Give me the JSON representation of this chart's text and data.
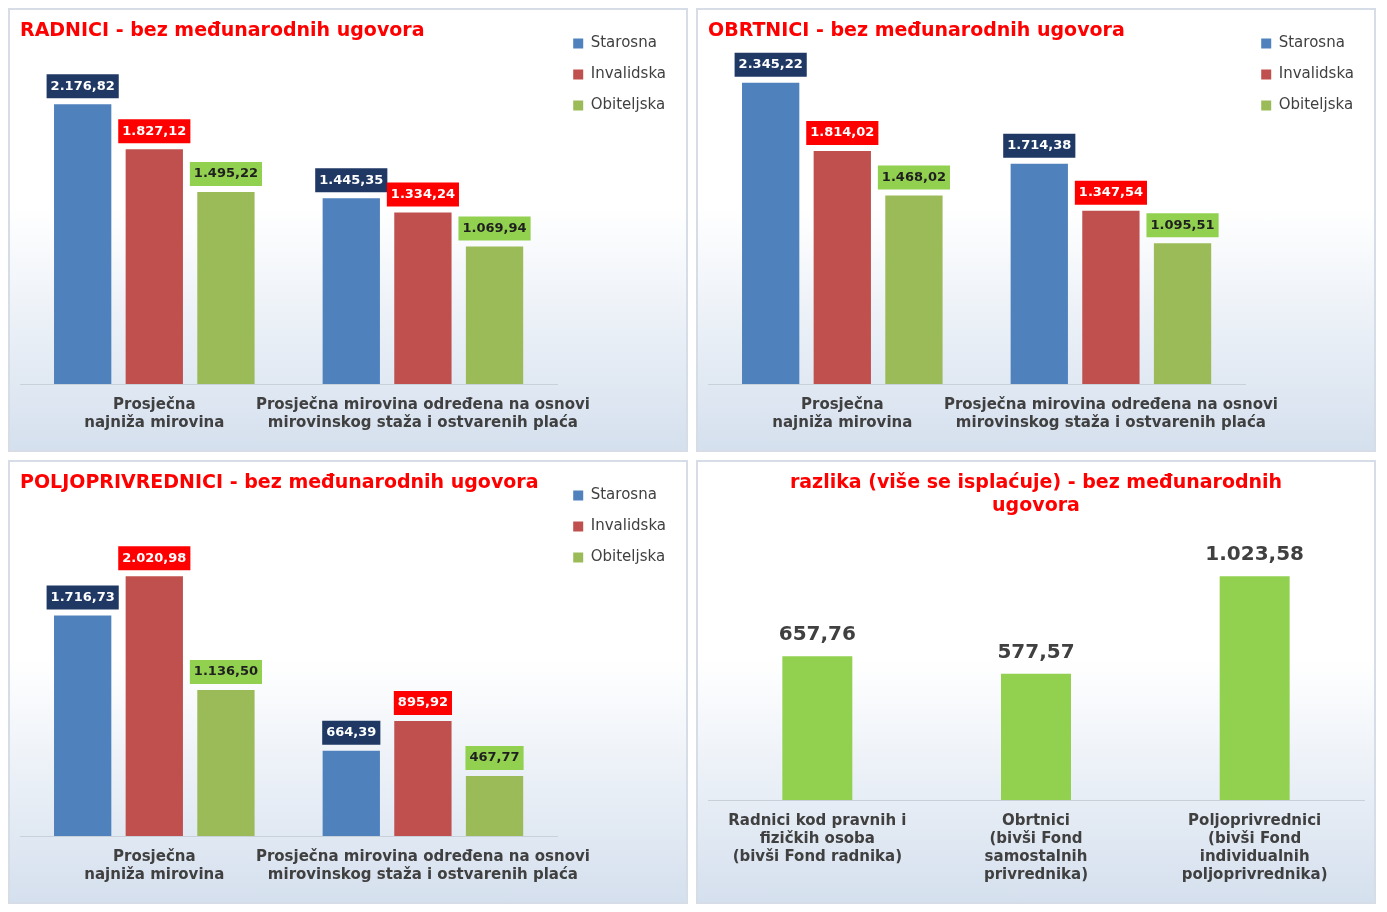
{
  "chart_data": [
    {
      "type": "bar",
      "title": "RADNICI - bez međunarodnih ugovora",
      "categories": [
        "Prosječna\nnajniža mirovina",
        "Prosječna mirovina određena na osnovi\nmirovinskog staža i ostvarenih plaća"
      ],
      "legend": "top right",
      "grid": false,
      "series": [
        {
          "name": "Starosna",
          "color": "#4f81bd",
          "values": [
            2176.82,
            1445.35
          ],
          "value_labels": [
            "2.176,82",
            "1.445,35"
          ]
        },
        {
          "name": "Invalidska",
          "color": "#c0504d",
          "values": [
            1827.12,
            1334.24
          ],
          "value_labels": [
            "1.827,12",
            "1.334,24"
          ]
        },
        {
          "name": "Obiteljska",
          "color": "#9bbb59",
          "values": [
            1495.22,
            1069.94
          ],
          "value_labels": [
            "1.495,22",
            "1.069,94"
          ]
        }
      ]
    },
    {
      "type": "bar",
      "title": "OBRTNICI - bez međunarodnih ugovora",
      "categories": [
        "Prosječna\nnajniža mirovina",
        "Prosječna mirovina određena na osnovi\nmirovinskog staža i ostvarenih plaća"
      ],
      "legend": "top right",
      "grid": false,
      "series": [
        {
          "name": "Starosna",
          "color": "#4f81bd",
          "values": [
            2345.22,
            1714.38
          ],
          "value_labels": [
            "2.345,22",
            "1.714,38"
          ]
        },
        {
          "name": "Invalidska",
          "color": "#c0504d",
          "values": [
            1814.02,
            1347.54
          ],
          "value_labels": [
            "1.814,02",
            "1.347,54"
          ]
        },
        {
          "name": "Obiteljska",
          "color": "#9bbb59",
          "values": [
            1468.02,
            1095.51
          ],
          "value_labels": [
            "1.468,02",
            "1.095,51"
          ]
        }
      ]
    },
    {
      "type": "bar",
      "title": "POLJOPRIVREDNICI - bez međunarodnih ugovora",
      "categories": [
        "Prosječna\nnajniža mirovina",
        "Prosječna mirovina određena na osnovi\nmirovinskog staža i ostvarenih plaća"
      ],
      "legend": "top right",
      "grid": false,
      "series": [
        {
          "name": "Starosna",
          "color": "#4f81bd",
          "values": [
            1716.73,
            664.39
          ],
          "value_labels": [
            "1.716,73",
            "664,39"
          ]
        },
        {
          "name": "Invalidska",
          "color": "#c0504d",
          "values": [
            2020.98,
            895.92
          ],
          "value_labels": [
            "2.020,98",
            "895,92"
          ]
        },
        {
          "name": "Obiteljska",
          "color": "#9bbb59",
          "values": [
            1136.5,
            467.77
          ],
          "value_labels": [
            "1.136,50",
            "467,77"
          ]
        }
      ]
    },
    {
      "type": "bar",
      "title": "razlika (više se isplaćuje) - bez međunarodnih ugovora",
      "categories": [
        "Radnici kod pravnih i\nfizičkih osoba\n(bivši Fond radnika)",
        "Obrtnici\n(bivši Fond\nsamostalnih\nprivrednika)",
        "Poljoprivrednici\n(bivši Fond\nindividualnih\npoljoprivrednika)"
      ],
      "grid": false,
      "series": [
        {
          "color": "#92d050",
          "values": [
            657.76,
            577.57,
            1023.58
          ],
          "value_labels": [
            "657,76",
            "577,57",
            "1.023,58"
          ]
        }
      ]
    }
  ]
}
